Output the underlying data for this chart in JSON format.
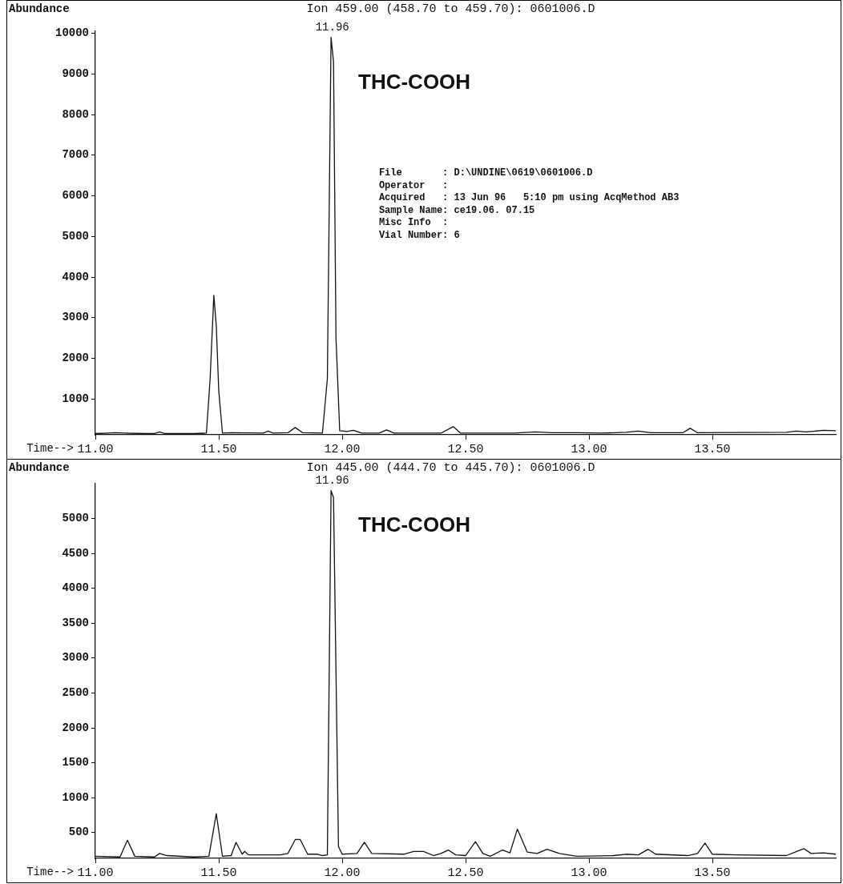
{
  "chart_data": [
    {
      "type": "line",
      "title": "Ion 459.00 (458.70 to 459.70): 0601006.D",
      "xlabel": "Time-->",
      "ylabel": "Abundance",
      "grid": false,
      "legend": false,
      "marker": "none",
      "line_style": "solid",
      "xlim": [
        11,
        14
      ],
      "ylim": [
        120,
        10050
      ],
      "xticks": [
        {
          "value": 11,
          "label": "11.00"
        },
        {
          "value": 11.5,
          "label": "11.50"
        },
        {
          "value": 12,
          "label": "12.00"
        },
        {
          "value": 12.5,
          "label": "12.50"
        },
        {
          "value": 13,
          "label": "13.00"
        },
        {
          "value": 13.5,
          "label": "13.50"
        }
      ],
      "yticks": [
        1000,
        2000,
        3000,
        4000,
        5000,
        6000,
        7000,
        8000,
        9000,
        10000
      ],
      "annotations": [
        "THC-COOH",
        {
          "text": "11.96",
          "x": 11.96,
          "y": 9900
        },
        "File       : D:\\UNDINE\\0619\\0601006.D",
        "Operator   :",
        "Acquired   : 13 Jun 96   5:10 pm using AcqMethod AB3",
        "Sample Name: ce19.06. 07.15",
        "Misc Info  :",
        "Vial Number: 6"
      ],
      "series": [
        {
          "color": "#111111",
          "x": [
            11.0,
            11.05,
            11.08,
            11.12,
            11.2,
            11.24,
            11.26,
            11.28,
            11.4,
            11.45,
            11.465,
            11.48,
            11.49,
            11.5,
            11.515,
            11.55,
            11.68,
            11.7,
            11.72,
            11.78,
            11.81,
            11.84,
            11.92,
            11.94,
            11.955,
            11.965,
            11.975,
            11.99,
            12.02,
            12.045,
            12.08,
            12.15,
            12.18,
            12.21,
            12.4,
            12.45,
            12.48,
            12.7,
            12.78,
            12.85,
            12.95,
            13.05,
            13.15,
            13.2,
            13.25,
            13.38,
            13.41,
            13.44,
            13.8,
            13.84,
            13.88,
            13.95,
            14.0
          ],
          "values": [
            150,
            160,
            170,
            160,
            150,
            150,
            190,
            150,
            150,
            160,
            1500,
            3550,
            2800,
            1200,
            160,
            170,
            160,
            210,
            160,
            170,
            300,
            170,
            160,
            1500,
            9900,
            9300,
            2500,
            220,
            200,
            230,
            160,
            160,
            240,
            160,
            160,
            320,
            160,
            160,
            190,
            170,
            170,
            160,
            180,
            210,
            170,
            170,
            280,
            170,
            180,
            210,
            190,
            230,
            220
          ]
        }
      ]
    },
    {
      "type": "line",
      "title": "Ion 445.00 (444.70 to 445.70): 0601006.D",
      "xlabel": "Time-->",
      "ylabel": "Abundance",
      "grid": false,
      "legend": false,
      "marker": "none",
      "line_style": "solid",
      "xlim": [
        11,
        14
      ],
      "ylim": [
        130,
        5500
      ],
      "xticks": [
        {
          "value": 11,
          "label": "11.00"
        },
        {
          "value": 11.5,
          "label": "11.50"
        },
        {
          "value": 12,
          "label": "12.00"
        },
        {
          "value": 12.5,
          "label": "12.50"
        },
        {
          "value": 13,
          "label": "13.00"
        },
        {
          "value": 13.5,
          "label": "13.50"
        }
      ],
      "yticks": [
        500,
        1000,
        1500,
        2000,
        2500,
        3000,
        3500,
        4000,
        4500,
        5000
      ],
      "annotations": [
        "THC-COOH",
        {
          "text": "11.96",
          "x": 11.96,
          "y": 5400
        }
      ],
      "series": [
        {
          "color": "#111111",
          "x": [
            11.0,
            11.1,
            11.13,
            11.16,
            11.24,
            11.26,
            11.29,
            11.4,
            11.46,
            11.49,
            11.515,
            11.55,
            11.57,
            11.595,
            11.605,
            11.62,
            11.75,
            11.78,
            11.81,
            11.83,
            11.86,
            11.9,
            11.92,
            11.94,
            11.955,
            11.965,
            11.985,
            12.0,
            12.06,
            12.09,
            12.12,
            12.25,
            12.29,
            12.33,
            12.37,
            12.4,
            12.43,
            12.46,
            12.5,
            12.54,
            12.57,
            12.6,
            12.65,
            12.68,
            12.71,
            12.75,
            12.79,
            12.83,
            12.88,
            12.95,
            13.1,
            13.15,
            13.2,
            13.24,
            13.27,
            13.4,
            13.44,
            13.47,
            13.5,
            13.6,
            13.8,
            13.87,
            13.9,
            13.95,
            14.0
          ],
          "values": [
            160,
            150,
            390,
            160,
            150,
            200,
            170,
            150,
            160,
            770,
            160,
            170,
            360,
            190,
            230,
            180,
            180,
            200,
            400,
            400,
            190,
            190,
            170,
            180,
            5400,
            5300,
            300,
            190,
            200,
            360,
            200,
            190,
            230,
            230,
            170,
            200,
            250,
            180,
            170,
            370,
            200,
            160,
            250,
            210,
            550,
            220,
            200,
            260,
            200,
            160,
            170,
            190,
            180,
            260,
            190,
            170,
            200,
            350,
            190,
            180,
            170,
            270,
            200,
            210,
            190
          ]
        }
      ]
    }
  ]
}
